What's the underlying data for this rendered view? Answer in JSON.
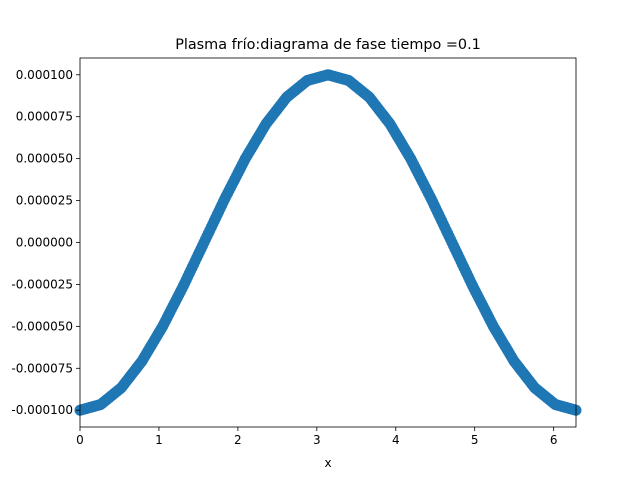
{
  "chart_data": {
    "type": "scatter",
    "title": "Plasma frío:diagrama de fase  tiempo =0.1",
    "xlabel": "x",
    "ylabel": "",
    "xlim": [
      0,
      6.2832
    ],
    "ylim": [
      -0.00011,
      0.00011
    ],
    "x_ticks": [
      0,
      1,
      2,
      3,
      4,
      5,
      6
    ],
    "x_tick_labels": [
      "0",
      "1",
      "2",
      "3",
      "4",
      "5",
      "6"
    ],
    "y_ticks": [
      0.0001,
      7.5e-05,
      5e-05,
      2.5e-05,
      0.0,
      -2.5e-05,
      -5e-05,
      -7.5e-05,
      -0.0001
    ],
    "y_tick_labels": [
      "0.000100",
      "0.000075",
      "0.000050",
      "0.000025",
      "0.000000",
      "-0.000025",
      "-0.000050",
      "-0.000075",
      "-0.000100"
    ],
    "series": [
      {
        "function": "y = -0.0001 * cos(x)",
        "x": [
          0.0,
          0.2618,
          0.5236,
          0.7854,
          1.0472,
          1.309,
          1.5708,
          1.8326,
          2.0944,
          2.3562,
          2.618,
          2.8798,
          3.1416,
          3.4034,
          3.6652,
          3.927,
          4.1888,
          4.4506,
          4.7124,
          4.9742,
          5.236,
          5.4978,
          5.7596,
          6.0214,
          6.2832
        ],
        "y": [
          -0.0001,
          -9.66e-05,
          -8.66e-05,
          -7.07e-05,
          -5e-05,
          -2.59e-05,
          0.0,
          2.59e-05,
          5e-05,
          7.07e-05,
          8.66e-05,
          9.66e-05,
          0.0001,
          9.66e-05,
          8.66e-05,
          7.07e-05,
          5e-05,
          2.59e-05,
          0.0,
          -2.59e-05,
          -5e-05,
          -7.07e-05,
          -8.66e-05,
          -9.66e-05,
          -0.0001
        ]
      }
    ],
    "grid": false,
    "legend": "none",
    "marker_color": "#1f77b4"
  }
}
